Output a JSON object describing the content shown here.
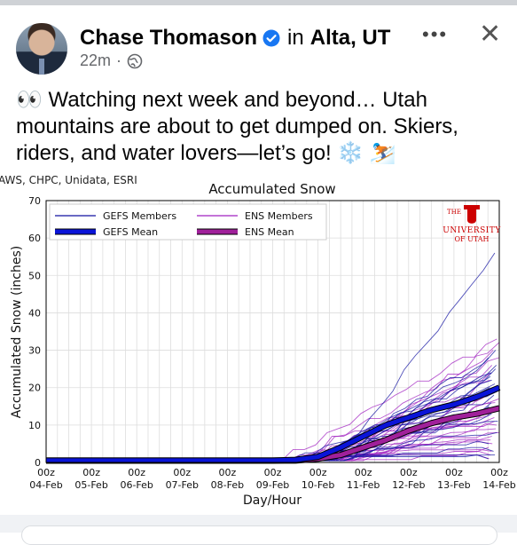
{
  "post": {
    "author": "Chase Thomason",
    "in_word": "in",
    "location": "Alta, UT",
    "time": "22m",
    "meta_dot": "·",
    "more_label": "•••",
    "close_label": "✕",
    "text": "👀 Watching next week and beyond… Utah mountains are about to get dumped on. Skiers, riders, and water lovers—let’s go! ❄️ ⛷️"
  },
  "icons": {
    "verified": "verified-badge-icon",
    "privacy": "globe-icon",
    "more": "more-options-icon",
    "close": "close-icon"
  },
  "colors": {
    "verified_blue": "#1877f2",
    "gefs": "#1010a0",
    "ens": "#a020c0"
  },
  "chart_data": {
    "type": "line",
    "source_text": "AWS, CHPC, Unidata, ESRI",
    "title": "Accumulated Snow",
    "xlabel": "Day/Hour",
    "ylabel": "Accumulated Snow (inches)",
    "ylim": [
      0,
      70
    ],
    "yticks": [
      0,
      10,
      20,
      30,
      40,
      50,
      60,
      70
    ],
    "x_ticks": [
      "00z\n04-Feb",
      "00z\n05-Feb",
      "00z\n06-Feb",
      "00z\n07-Feb",
      "00z\n08-Feb",
      "00z\n09-Feb",
      "00z\n10-Feb",
      "00z\n11-Feb",
      "00z\n12-Feb",
      "00z\n13-Feb",
      "00z\n14-Feb"
    ],
    "grid": true,
    "legend_position": "top-left",
    "legend": [
      "GEFS Members",
      "GEFS Mean",
      "ENS Members",
      "ENS Mean"
    ],
    "logo_text": [
      "THE",
      "UNIVERSITY",
      "OF UTAH"
    ],
    "series": [
      {
        "name": "GEFS Mean",
        "x": [
          0,
          5,
          5.5,
          6,
          6.5,
          7,
          7.5,
          8,
          8.5,
          9,
          9.5,
          10
        ],
        "values": [
          0.5,
          0.5,
          0.7,
          1.5,
          4,
          7,
          10,
          12,
          14,
          15.5,
          17.5,
          20
        ]
      },
      {
        "name": "ENS Mean",
        "x": [
          0,
          5,
          5.5,
          6,
          6.5,
          7,
          7.5,
          8,
          8.5,
          9,
          9.5,
          10
        ],
        "values": [
          0.5,
          0.5,
          0.5,
          1,
          2,
          4,
          6,
          8.5,
          10.5,
          12,
          13,
          14.5
        ]
      },
      {
        "name": "GEFS Members",
        "members_final": [
          56,
          30,
          28,
          26,
          25,
          24,
          23,
          22,
          21,
          20,
          19,
          18,
          16,
          15,
          13,
          11,
          8,
          5,
          3,
          2,
          1
        ]
      },
      {
        "name": "ENS Members",
        "members_final": [
          33,
          32,
          30,
          28,
          26,
          24,
          22,
          20,
          19,
          18,
          17,
          16,
          15,
          14,
          13,
          12,
          11,
          10,
          9,
          8,
          7,
          6,
          5,
          4,
          3,
          2,
          1
        ]
      }
    ]
  }
}
